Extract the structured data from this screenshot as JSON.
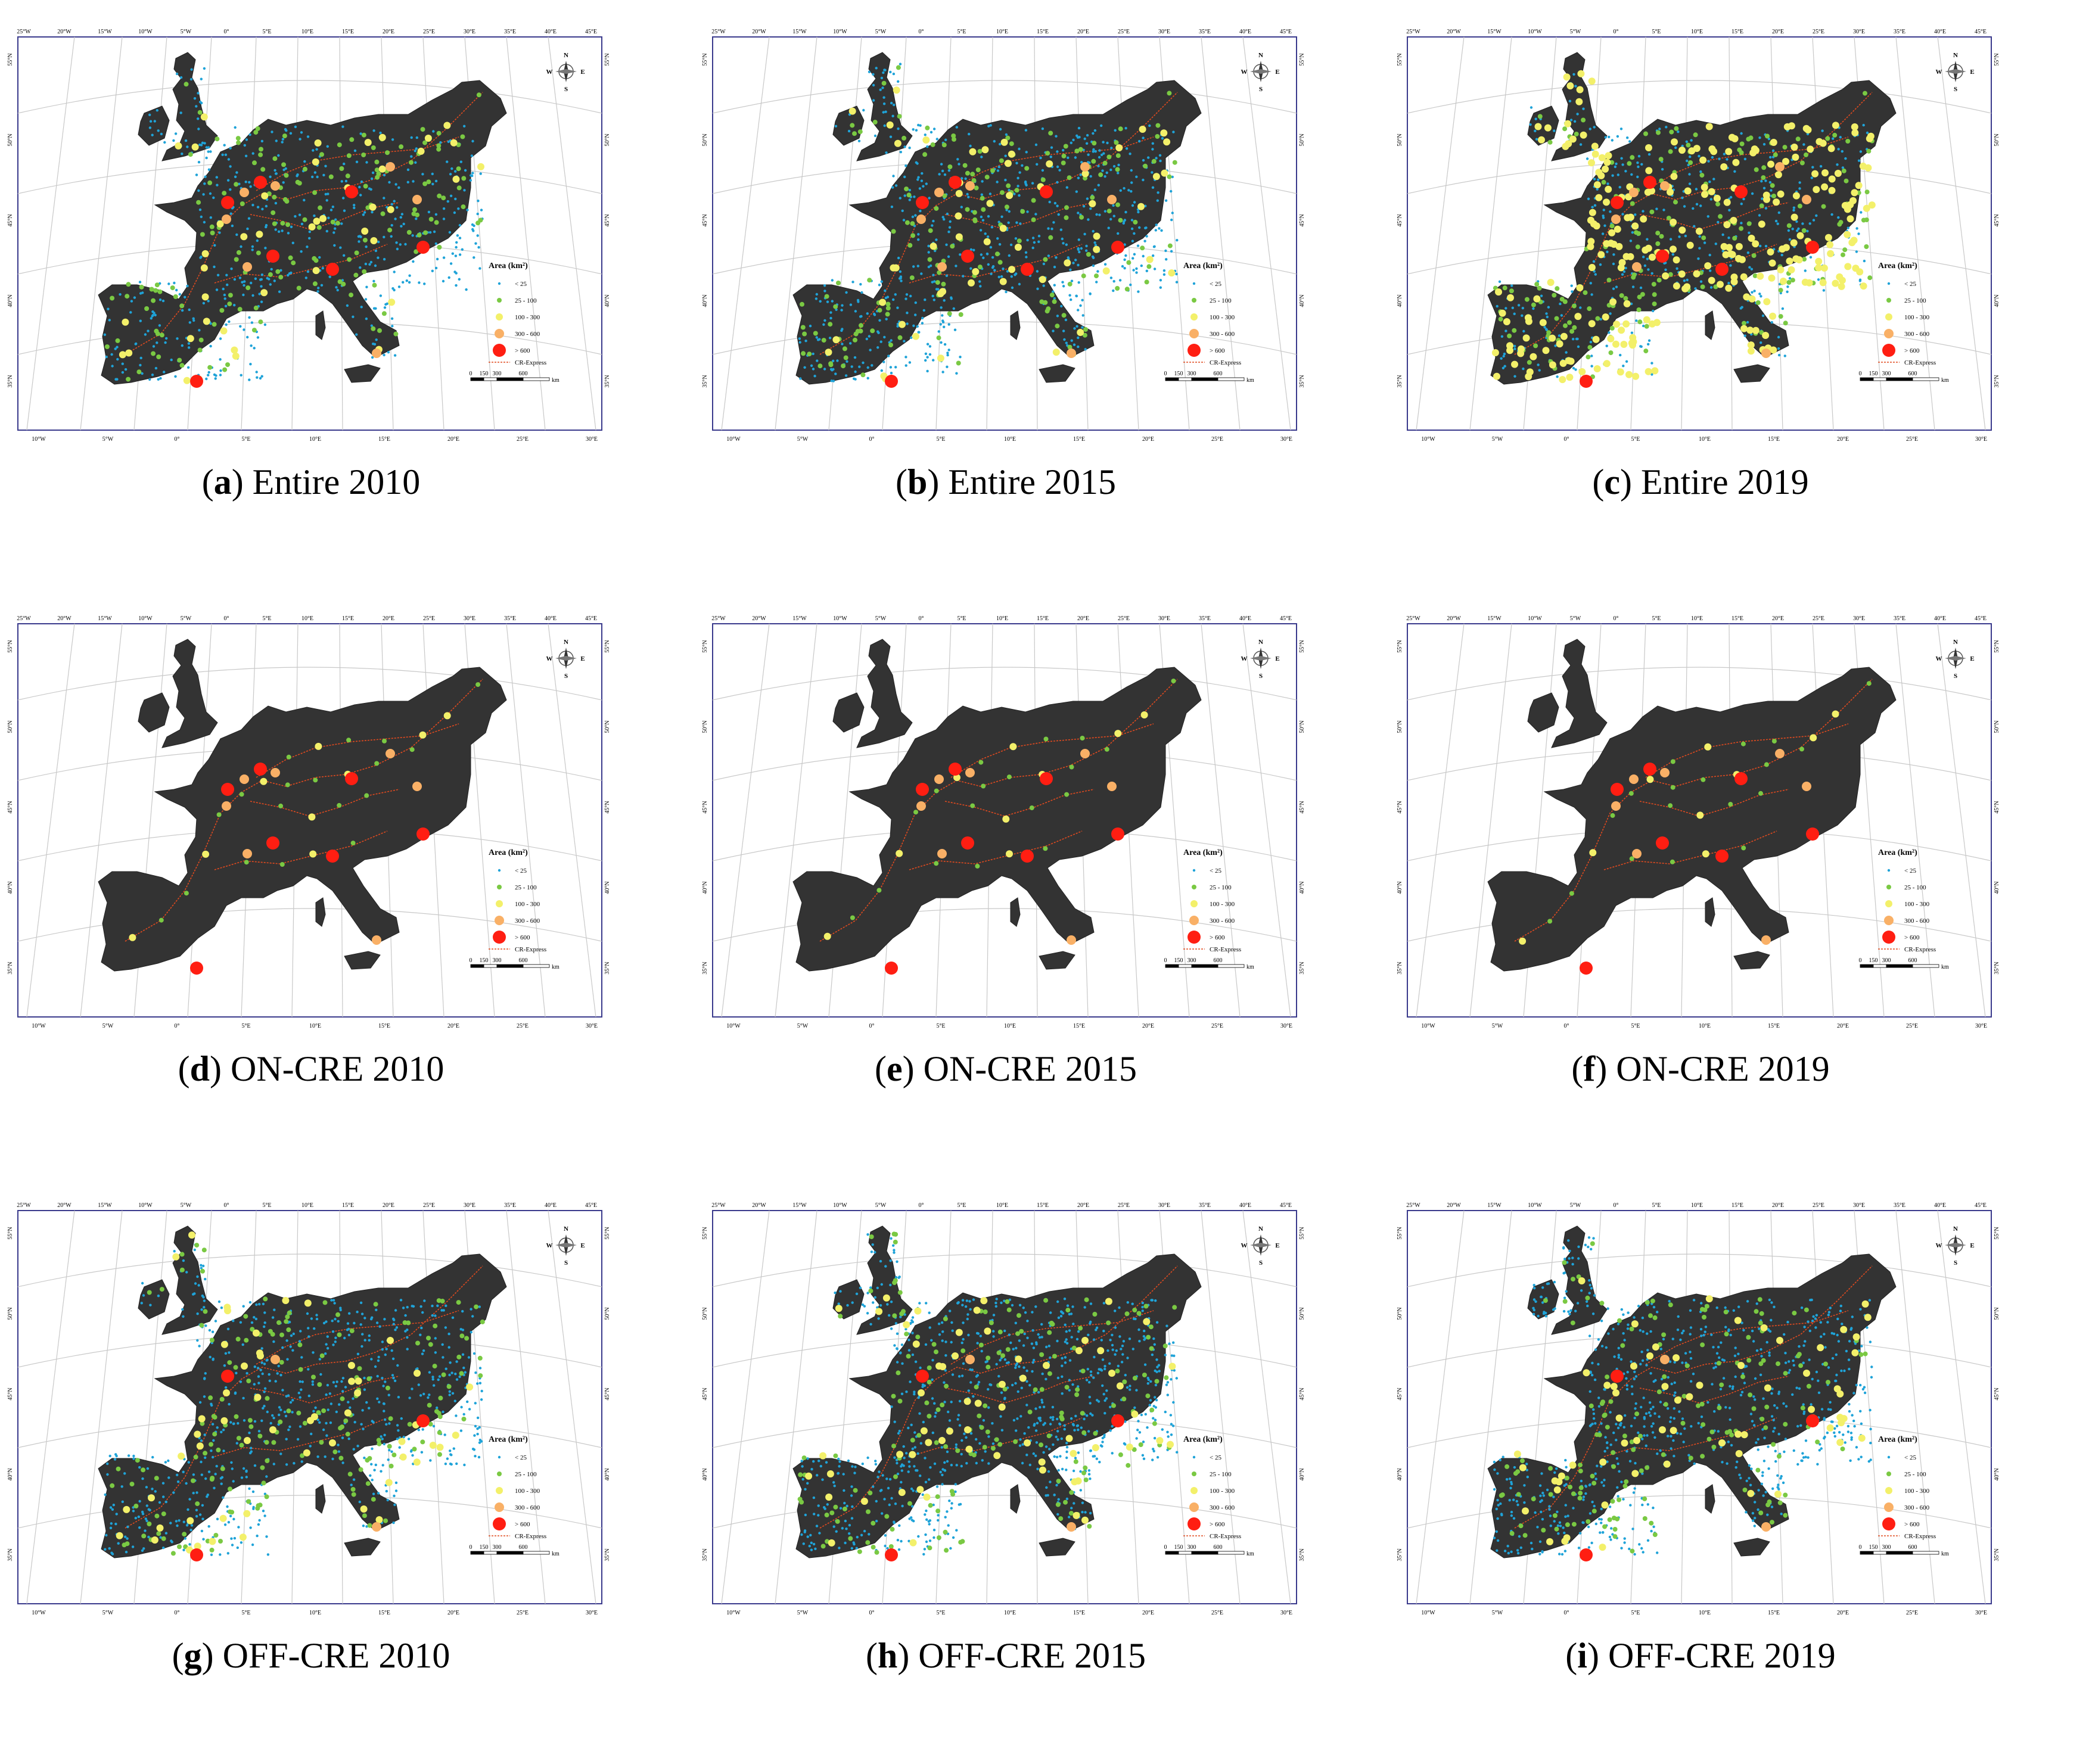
{
  "panels": [
    {
      "letter": "a",
      "title": "Entire 2010",
      "points": "entire2010"
    },
    {
      "letter": "b",
      "title": "Entire 2015",
      "points": "entire2015"
    },
    {
      "letter": "c",
      "title": "Entire 2019",
      "points": "entire2019"
    },
    {
      "letter": "d",
      "title": "ON-CRE 2010",
      "points": "on2010"
    },
    {
      "letter": "e",
      "title": "ON-CRE 2015",
      "points": "on2015"
    },
    {
      "letter": "f",
      "title": "ON-CRE 2019",
      "points": "on2019"
    },
    {
      "letter": "g",
      "title": "OFF-CRE 2010",
      "points": "off2010"
    },
    {
      "letter": "h",
      "title": "OFF-CRE 2015",
      "points": "off2015"
    },
    {
      "letter": "i",
      "title": "OFF-CRE 2019",
      "points": "off2019"
    }
  ],
  "map": {
    "top_lon_labels": [
      "25°W",
      "20°W",
      "15°W",
      "10°W",
      "5°W",
      "0°",
      "5°E",
      "10°E",
      "15°E",
      "20°E",
      "25°E",
      "30°E",
      "35°E",
      "40°E",
      "45°E"
    ],
    "bottom_lon_labels": [
      "10°W",
      "5°W",
      "0°",
      "5°E",
      "10°E",
      "15°E",
      "20°E",
      "25°E",
      "30°E"
    ],
    "lat_labels": [
      "55°N",
      "50°N",
      "45°N",
      "40°N",
      "35°N"
    ],
    "compass": {
      "n": "N",
      "s": "S",
      "e": "E",
      "w": "W"
    },
    "legend": {
      "title": "Area (km²)",
      "classes": [
        {
          "label": "< 25",
          "color": "#1fa3d8"
        },
        {
          "label": "25 - 100",
          "color": "#7ac943"
        },
        {
          "label": "100 - 300",
          "color": "#f3f06a"
        },
        {
          "label": "300 - 600",
          "color": "#f9b066"
        },
        {
          "label": "> 600",
          "color": "#ff1e12"
        }
      ],
      "route_label": "CR-Express",
      "route_color": "#e04a1f",
      "scale_ticks": [
        "0",
        "150",
        "300",
        "600"
      ],
      "scale_unit": "km"
    },
    "land_color": "#333333",
    "frame_color": "#3a3a8c"
  }
}
